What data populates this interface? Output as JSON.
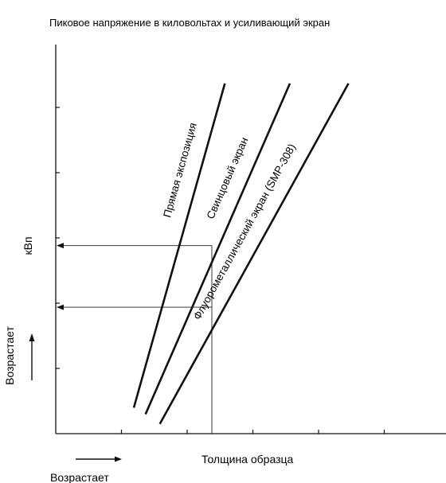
{
  "chart_data": {
    "type": "line",
    "title": "Пиковое напряжение в киловольтах и усиливающий экран",
    "xlabel": "Толщина образца",
    "ylabel": "кВп",
    "x_direction_label": "Возрастает",
    "y_direction_label": "Возрастает",
    "x_tick_count": 6,
    "y_tick_count": 5,
    "xlim": [
      0,
      6
    ],
    "ylim": [
      0,
      6
    ],
    "grid": false,
    "series": [
      {
        "name": "Прямая экспозиция",
        "x": [
          1.2,
          2.6
        ],
        "y": [
          0.4,
          5.4
        ]
      },
      {
        "name": "Свинцовый экран",
        "x": [
          1.38,
          3.6
        ],
        "y": [
          0.3,
          5.4
        ]
      },
      {
        "name": "Флуорометаллический экран (SMP-308)",
        "x": [
          1.6,
          4.5
        ],
        "y": [
          0.15,
          5.4
        ]
      }
    ],
    "reference_lines": [
      {
        "x": 2.4,
        "y": 2.9
      },
      {
        "x": 2.4,
        "y": 1.95
      }
    ]
  }
}
